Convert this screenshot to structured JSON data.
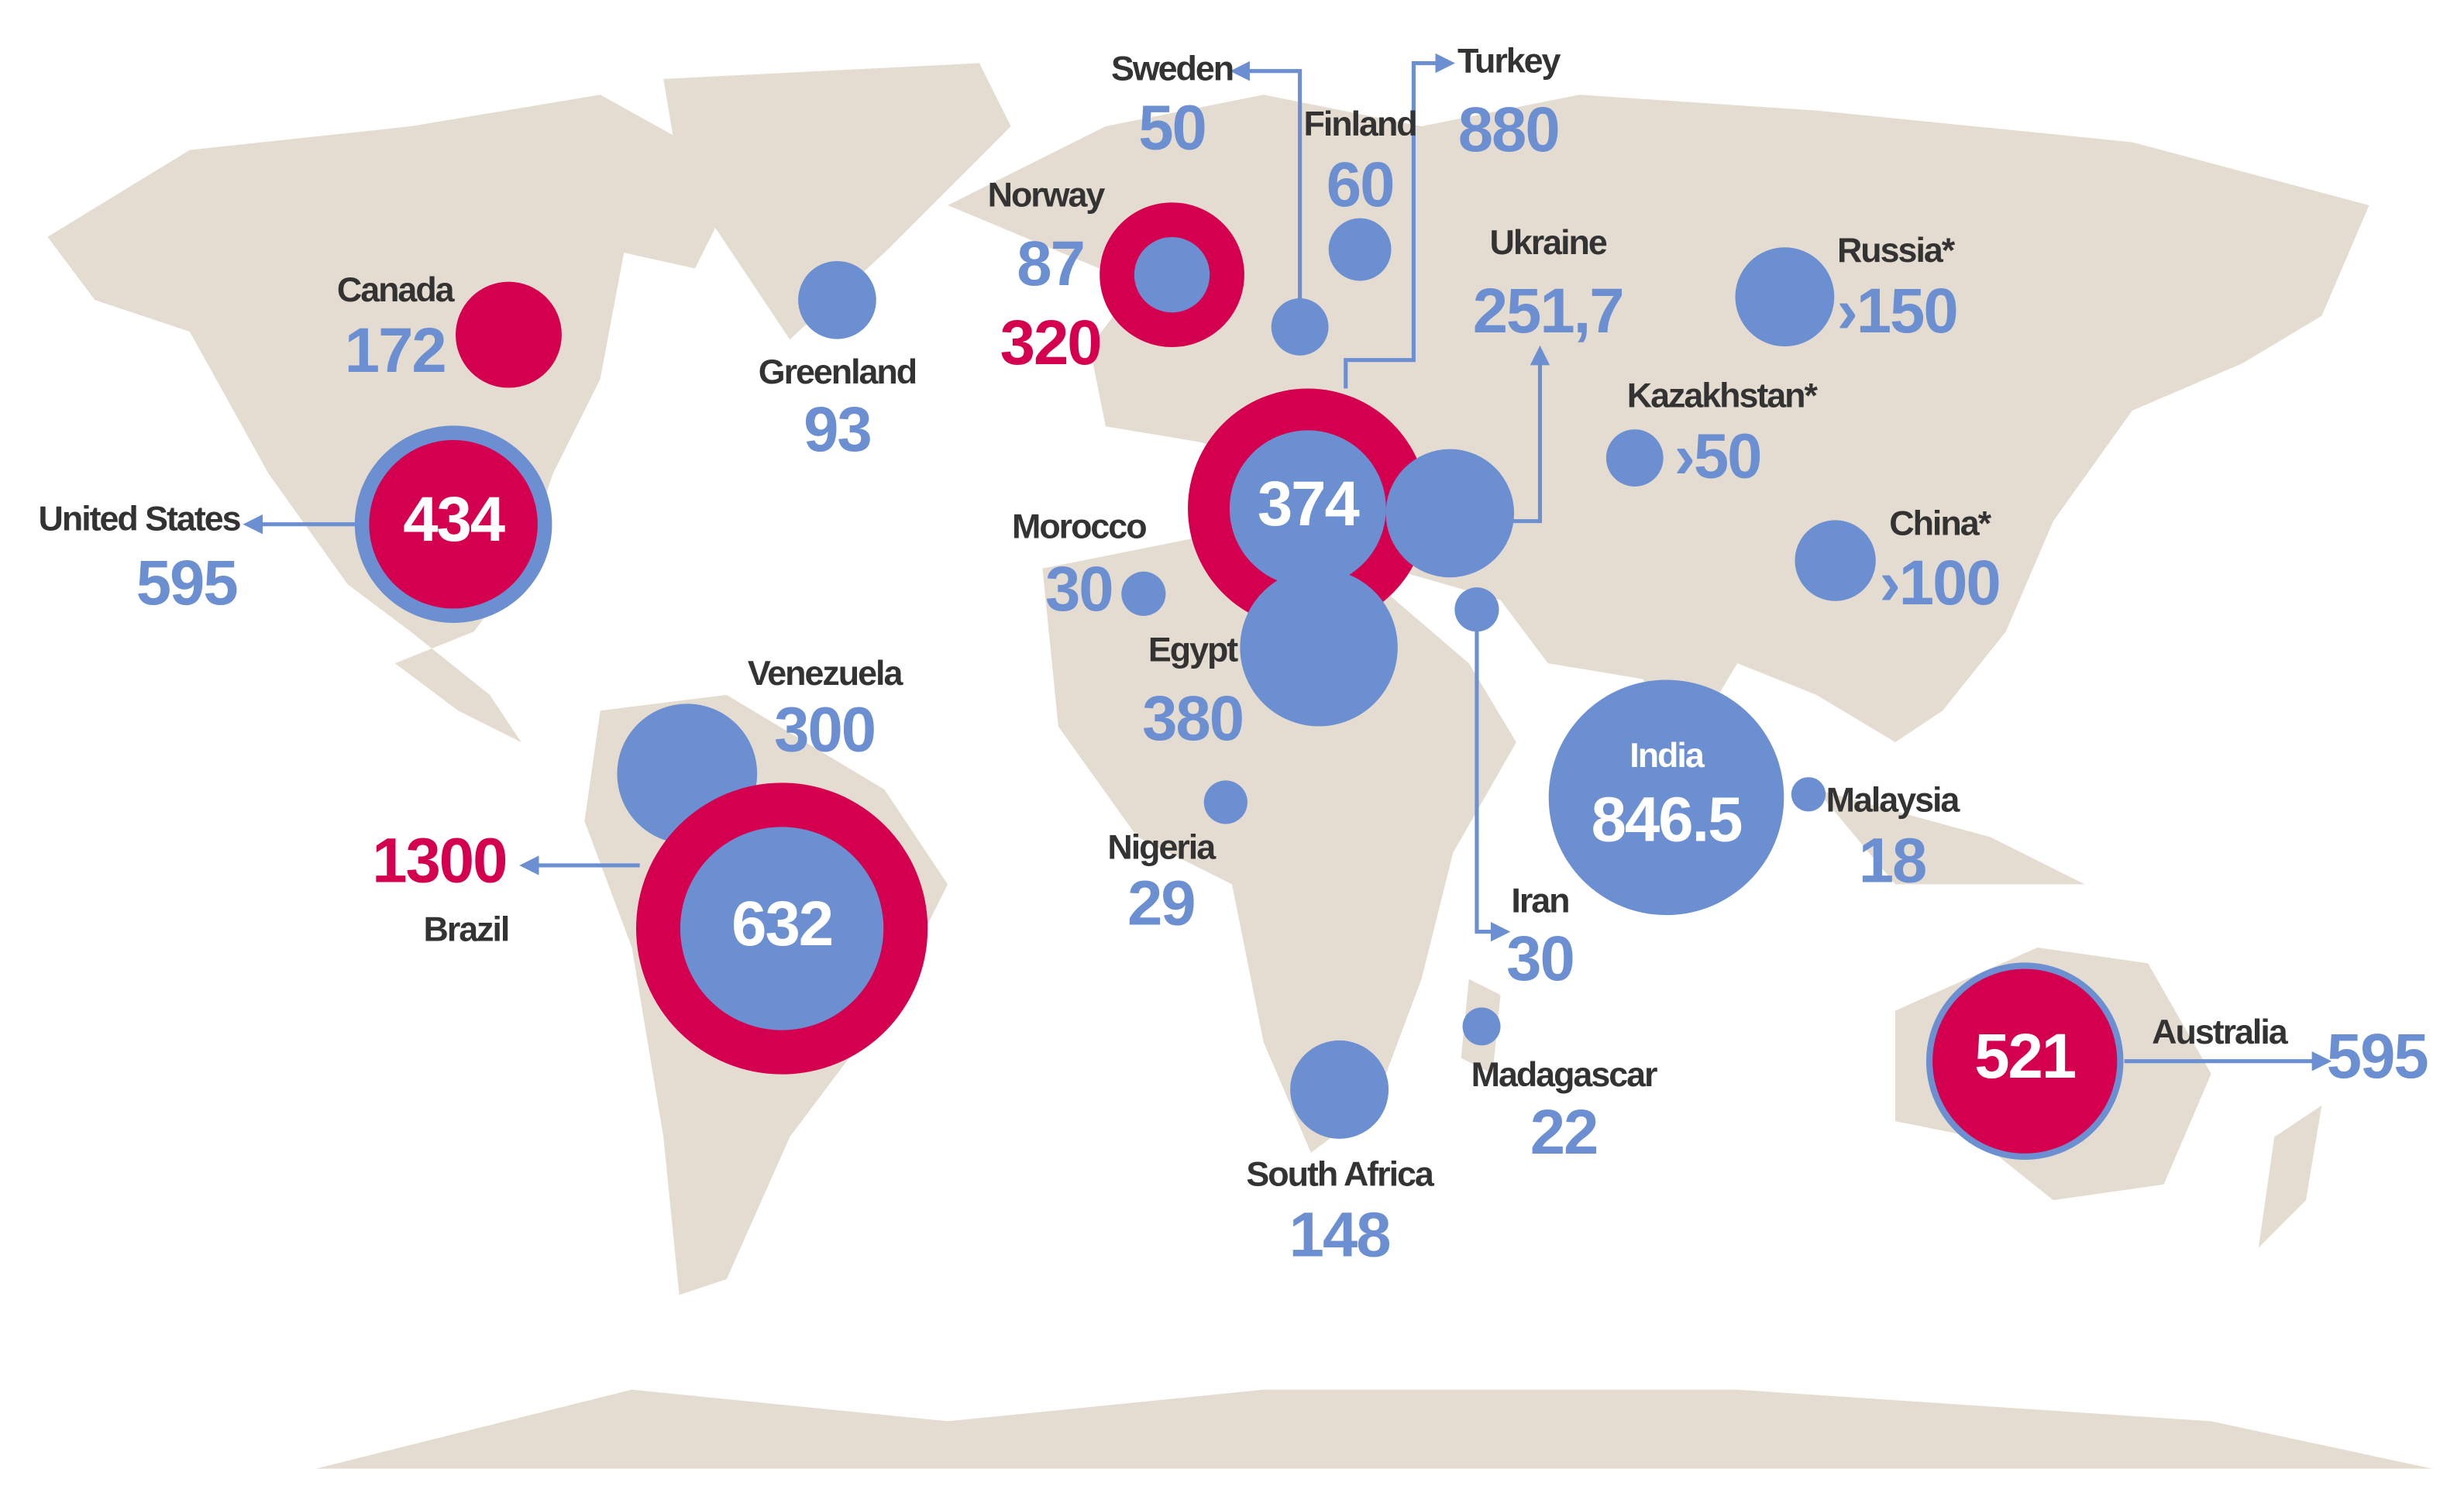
{
  "countries": [
    {
      "name": "Canada",
      "bubbles": [
        {
          "value": 172,
          "color": "#d4004f"
        }
      ]
    },
    {
      "name": "United States",
      "bubbles": [
        {
          "value": 595,
          "color": "#6b8fd0"
        },
        {
          "value": 434,
          "color": "#d4004f"
        }
      ]
    },
    {
      "name": "Greenland",
      "bubbles": [
        {
          "value": 93,
          "color": "#6b8fd0"
        }
      ]
    },
    {
      "name": "Norway",
      "bubbles": [
        {
          "value": 320,
          "color": "#d4004f"
        },
        {
          "value": 87,
          "color": "#6b8fd0"
        }
      ]
    },
    {
      "name": "Sweden",
      "bubbles": [
        {
          "value": 50,
          "color": "#6b8fd0"
        }
      ]
    },
    {
      "name": "Finland",
      "bubbles": [
        {
          "value": 60,
          "color": "#6b8fd0"
        }
      ]
    },
    {
      "name": "Turkey",
      "bubbles": [
        {
          "value": 880,
          "color": "#d4004f"
        },
        {
          "value": 374,
          "color": "#6b8fd0"
        }
      ]
    },
    {
      "name": "Ukraine",
      "bubbles": [
        {
          "value": 251.7,
          "label": "251,7",
          "color": "#6b8fd0"
        }
      ]
    },
    {
      "name": "Russia*",
      "bubbles": [
        {
          "value": 150,
          "label": "›150",
          "color": "#6b8fd0"
        }
      ]
    },
    {
      "name": "Kazakhstan*",
      "bubbles": [
        {
          "value": 50,
          "label": "›50",
          "color": "#6b8fd0"
        }
      ]
    },
    {
      "name": "China*",
      "bubbles": [
        {
          "value": 100,
          "label": "›100",
          "color": "#6b8fd0"
        }
      ]
    },
    {
      "name": "Morocco",
      "bubbles": [
        {
          "value": 30,
          "color": "#6b8fd0"
        }
      ]
    },
    {
      "name": "Egypt",
      "bubbles": [
        {
          "value": 380,
          "color": "#6b8fd0"
        }
      ]
    },
    {
      "name": "Iran",
      "bubbles": [
        {
          "value": 30,
          "color": "#6b8fd0"
        }
      ]
    },
    {
      "name": "Nigeria",
      "bubbles": [
        {
          "value": 29,
          "color": "#6b8fd0"
        }
      ]
    },
    {
      "name": "India",
      "bubbles": [
        {
          "value": 846.5,
          "color": "#6b8fd0"
        }
      ]
    },
    {
      "name": "Malaysia",
      "bubbles": [
        {
          "value": 18,
          "color": "#6b8fd0"
        }
      ]
    },
    {
      "name": "Venezuela",
      "bubbles": [
        {
          "value": 300,
          "color": "#6b8fd0"
        }
      ]
    },
    {
      "name": "Brazil",
      "bubbles": [
        {
          "value": 1300,
          "color": "#d4004f"
        },
        {
          "value": 632,
          "color": "#6b8fd0"
        }
      ]
    },
    {
      "name": "South Africa",
      "bubbles": [
        {
          "value": 148,
          "color": "#6b8fd0"
        }
      ]
    },
    {
      "name": "Madagascar",
      "bubbles": [
        {
          "value": 22,
          "color": "#6b8fd0"
        }
      ]
    },
    {
      "name": "Australia",
      "bubbles": [
        {
          "value": 595,
          "color": "#6b8fd0"
        },
        {
          "value": 521,
          "color": "#d4004f"
        }
      ]
    }
  ]
}
